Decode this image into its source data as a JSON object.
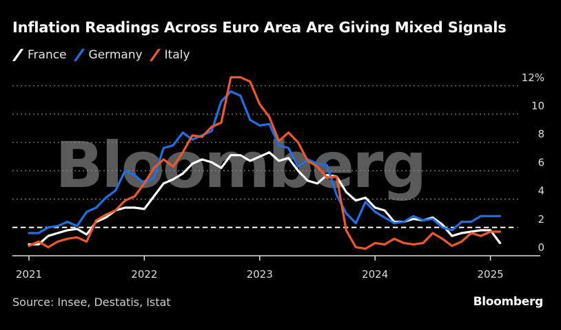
{
  "title": "Inflation Readings Across Euro Area Are Giving Mixed Signals",
  "legend": [
    {
      "label": "France",
      "color": "#ffffff"
    },
    {
      "label": "Germany",
      "color": "#1f6fe5"
    },
    {
      "label": "Italy",
      "color": "#f0582a"
    }
  ],
  "source": "Source: Insee, Destatis, Istat",
  "brand": "Bloomberg",
  "watermark": "Bloomberg",
  "chart_data": {
    "type": "line",
    "title": "Inflation Readings Across Euro Area Are Giving Mixed Signals",
    "xlabel": "",
    "ylabel": "",
    "y_unit_suffix": "%",
    "ylim": [
      0,
      12
    ],
    "yticks": [
      0,
      2,
      4,
      6,
      8,
      10,
      12
    ],
    "ytick_labels": [
      "0",
      "2",
      "4",
      "6",
      "8",
      "10",
      "12%"
    ],
    "xticks": [
      "2021",
      "2022",
      "2023",
      "2024",
      "2025"
    ],
    "grid": true,
    "legend_position": "top-left",
    "reference_line": {
      "value": 2,
      "style": "dashed",
      "color": "#ffffff"
    },
    "x_start": "2021-01",
    "x_end": "2025-02",
    "series": [
      {
        "name": "France",
        "color": "#ffffff",
        "values": [
          0.8,
          0.8,
          1.4,
          1.6,
          1.8,
          1.9,
          1.5,
          2.4,
          2.7,
          3.2,
          3.4,
          3.4,
          3.3,
          4.2,
          5.1,
          5.4,
          5.8,
          6.5,
          6.8,
          6.6,
          6.2,
          7.1,
          7.1,
          6.7,
          7.0,
          7.3,
          6.7,
          6.9,
          6.0,
          5.3,
          5.1,
          5.7,
          5.6,
          4.5,
          3.9,
          4.1,
          3.4,
          3.2,
          2.4,
          2.4,
          2.6,
          2.5,
          2.7,
          2.2,
          1.4,
          1.6,
          1.7,
          1.8,
          1.8,
          0.9
        ]
      },
      {
        "name": "Germany",
        "color": "#1f6fe5",
        "values": [
          1.6,
          1.6,
          2.0,
          2.1,
          2.4,
          2.1,
          3.1,
          3.4,
          4.1,
          4.6,
          6.0,
          5.7,
          5.1,
          5.5,
          7.6,
          7.8,
          8.7,
          8.2,
          8.5,
          8.8,
          10.9,
          11.6,
          11.3,
          9.6,
          9.2,
          9.3,
          7.8,
          7.6,
          6.3,
          6.8,
          6.5,
          6.4,
          4.3,
          3.0,
          2.3,
          3.8,
          3.1,
          2.7,
          2.3,
          2.4,
          2.8,
          2.5,
          2.6,
          2.0,
          1.8,
          2.4,
          2.4,
          2.8,
          2.8,
          2.8
        ]
      },
      {
        "name": "Italy",
        "color": "#f0582a",
        "values": [
          0.7,
          1.0,
          0.6,
          1.0,
          1.2,
          1.3,
          1.0,
          2.5,
          2.9,
          3.2,
          3.9,
          4.2,
          5.1,
          6.2,
          6.8,
          6.3,
          7.3,
          8.5,
          8.4,
          9.1,
          9.4,
          12.6,
          12.6,
          12.3,
          10.7,
          9.8,
          8.1,
          8.7,
          8.0,
          6.7,
          6.3,
          5.5,
          5.6,
          1.8,
          0.6,
          0.5,
          0.9,
          0.8,
          1.2,
          0.9,
          0.8,
          0.9,
          1.6,
          1.2,
          0.7,
          1.0,
          1.6,
          1.4,
          1.7,
          1.7
        ]
      }
    ]
  }
}
